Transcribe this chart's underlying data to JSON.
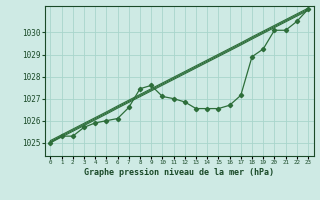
{
  "title": "Graphe pression niveau de la mer (hPa)",
  "bg_color": "#ceeae4",
  "grid_color": "#a8d5cc",
  "line_color": "#2d6e3a",
  "text_color": "#1a4a28",
  "ylabel_ticks": [
    1025,
    1026,
    1027,
    1028,
    1029,
    1030
  ],
  "xlim": [
    -0.5,
    23.5
  ],
  "ylim": [
    1024.4,
    1031.2
  ],
  "hours": [
    0,
    1,
    2,
    3,
    4,
    5,
    6,
    7,
    8,
    9,
    10,
    11,
    12,
    13,
    14,
    15,
    16,
    17,
    18,
    19,
    20,
    21,
    22,
    23
  ],
  "linear_ref": [
    1025.0,
    1025.26,
    1025.52,
    1025.78,
    1026.04,
    1026.3,
    1026.57,
    1026.83,
    1027.09,
    1027.35,
    1027.61,
    1027.87,
    1028.13,
    1028.39,
    1028.65,
    1028.91,
    1029.17,
    1029.43,
    1029.7,
    1029.96,
    1030.22,
    1030.48,
    1030.74,
    1031.0
  ],
  "linear_ref2": [
    1025.05,
    1025.31,
    1025.57,
    1025.83,
    1026.09,
    1026.35,
    1026.62,
    1026.88,
    1027.14,
    1027.4,
    1027.66,
    1027.92,
    1028.18,
    1028.44,
    1028.7,
    1028.96,
    1029.22,
    1029.48,
    1029.75,
    1030.01,
    1030.27,
    1030.53,
    1030.79,
    1031.05
  ],
  "linear_ref3": [
    1025.1,
    1025.36,
    1025.62,
    1025.88,
    1026.14,
    1026.4,
    1026.67,
    1026.93,
    1027.19,
    1027.45,
    1027.71,
    1027.97,
    1028.23,
    1028.49,
    1028.75,
    1029.01,
    1029.27,
    1029.53,
    1029.8,
    1030.06,
    1030.32,
    1030.58,
    1030.84,
    1031.1
  ],
  "main_series": [
    1025.0,
    1025.3,
    1025.3,
    1025.7,
    1025.9,
    1026.0,
    1026.1,
    1026.6,
    1027.45,
    1027.6,
    1027.1,
    1027.0,
    1026.85,
    1026.55,
    1026.55,
    1026.55,
    1026.7,
    1027.15,
    1028.9,
    1029.25,
    1030.1,
    1030.1,
    1030.5,
    1031.05
  ]
}
